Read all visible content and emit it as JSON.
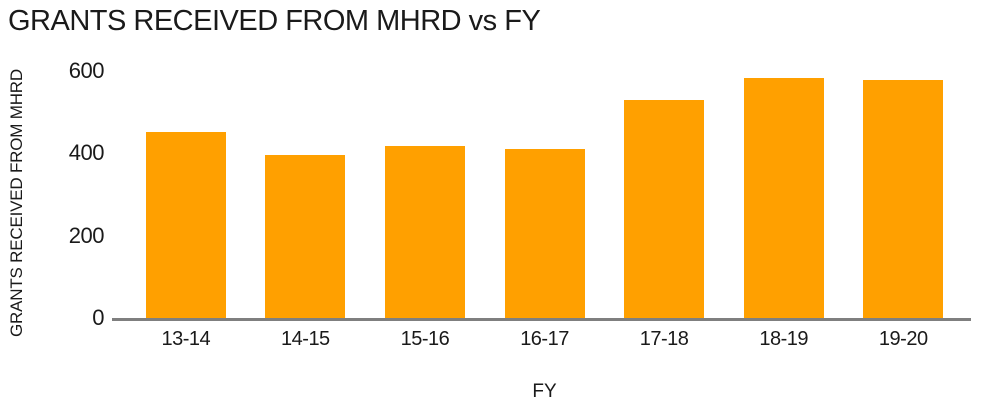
{
  "title": "GRANTS RECEIVED FROM MHRD vs FY",
  "colors": {
    "bar": "#FFA000",
    "axis_line": "#7f7f7f",
    "text": "#1a1a1a",
    "background": "#ffffff"
  },
  "chart_data": {
    "type": "bar",
    "title": "GRANTS RECEIVED FROM MHRD vs FY",
    "categories": [
      "13-14",
      "14-15",
      "15-16",
      "16-17",
      "17-18",
      "18-19",
      "19-20"
    ],
    "values": [
      452,
      397,
      419,
      411,
      530,
      584,
      578
    ],
    "xlabel": "FY",
    "ylabel": "GRANTS RECEIVED FROM MHRD",
    "ylim": [
      0,
      600
    ],
    "yticks": [
      0,
      200,
      400,
      600
    ],
    "grid": false,
    "legend": "none",
    "bar_color": "#FFA000"
  }
}
